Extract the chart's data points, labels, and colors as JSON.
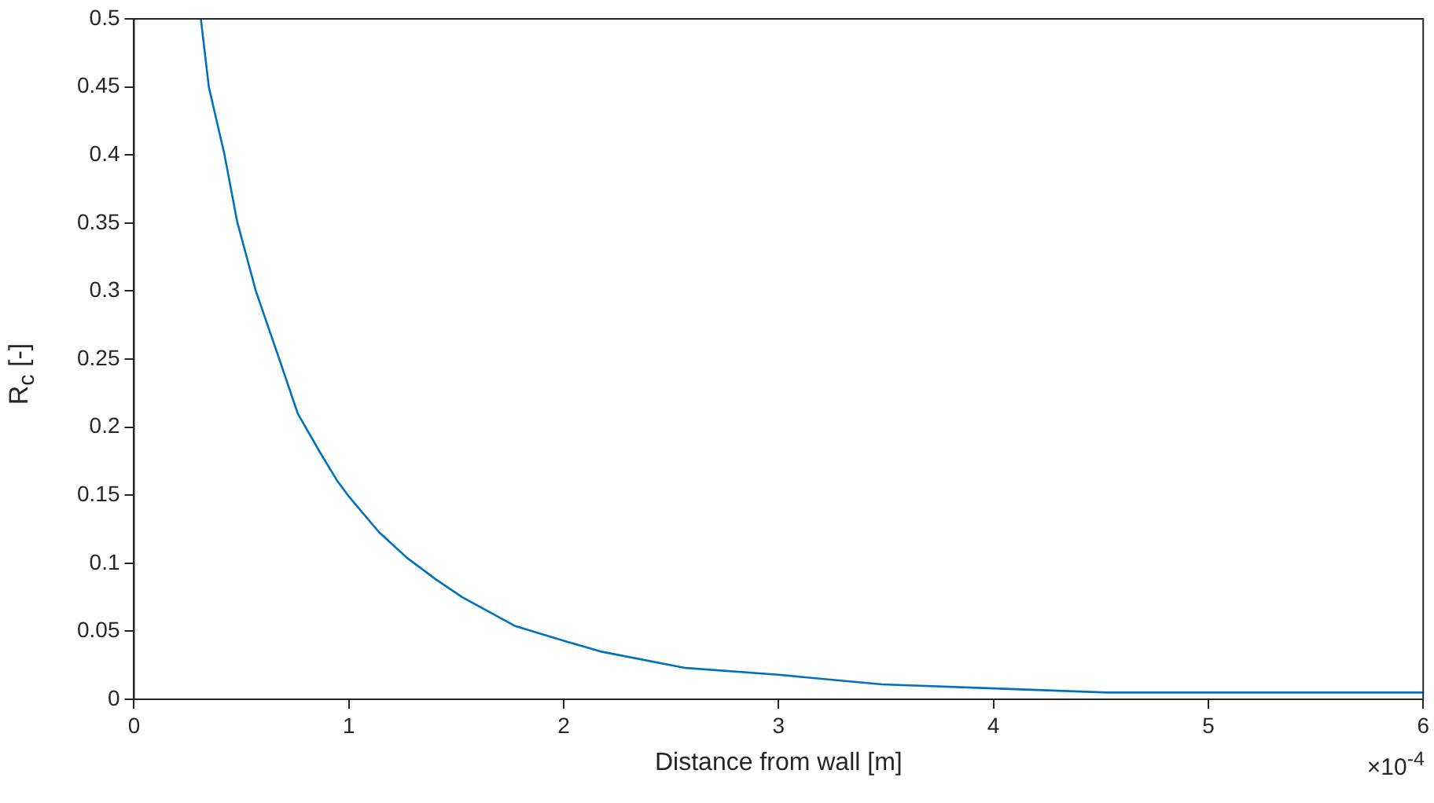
{
  "chart_data": {
    "type": "line",
    "xlabel": "Distance from wall [m]",
    "ylabel": "R$_{c}$ [-]",
    "x": [
      0.311,
      0.348,
      0.42,
      0.48,
      0.567,
      0.676,
      0.762,
      0.871,
      0.944,
      1.0,
      1.139,
      1.27,
      1.406,
      1.528,
      1.771,
      2.0,
      2.175,
      2.568,
      3.0,
      3.48,
      4.0,
      4.53,
      5.0,
      6.0
    ],
    "series": [
      {
        "color": "#0072bd",
        "values": [
          0.5,
          0.45,
          0.401,
          0.351,
          0.3,
          0.25,
          0.21,
          0.18,
          0.161,
          0.149,
          0.123,
          0.104,
          0.088,
          0.075,
          0.054,
          0.043,
          0.035,
          0.023,
          0.018,
          0.011,
          0.008,
          0.005,
          0.005,
          0.005
        ]
      }
    ],
    "xlim": [
      0,
      6
    ],
    "xticks": [
      0,
      1,
      2,
      3,
      4,
      5,
      6
    ],
    "ylim": [
      0,
      0.5
    ],
    "yticks": [
      0,
      0.05,
      0.1,
      0.15,
      0.2,
      0.25,
      0.3,
      0.35,
      0.4,
      0.45,
      0.5
    ],
    "annotations": [
      "×10$^{-4}$"
    ],
    "grid": false,
    "legend": false,
    "marker": "none",
    "line_style": "solid"
  }
}
